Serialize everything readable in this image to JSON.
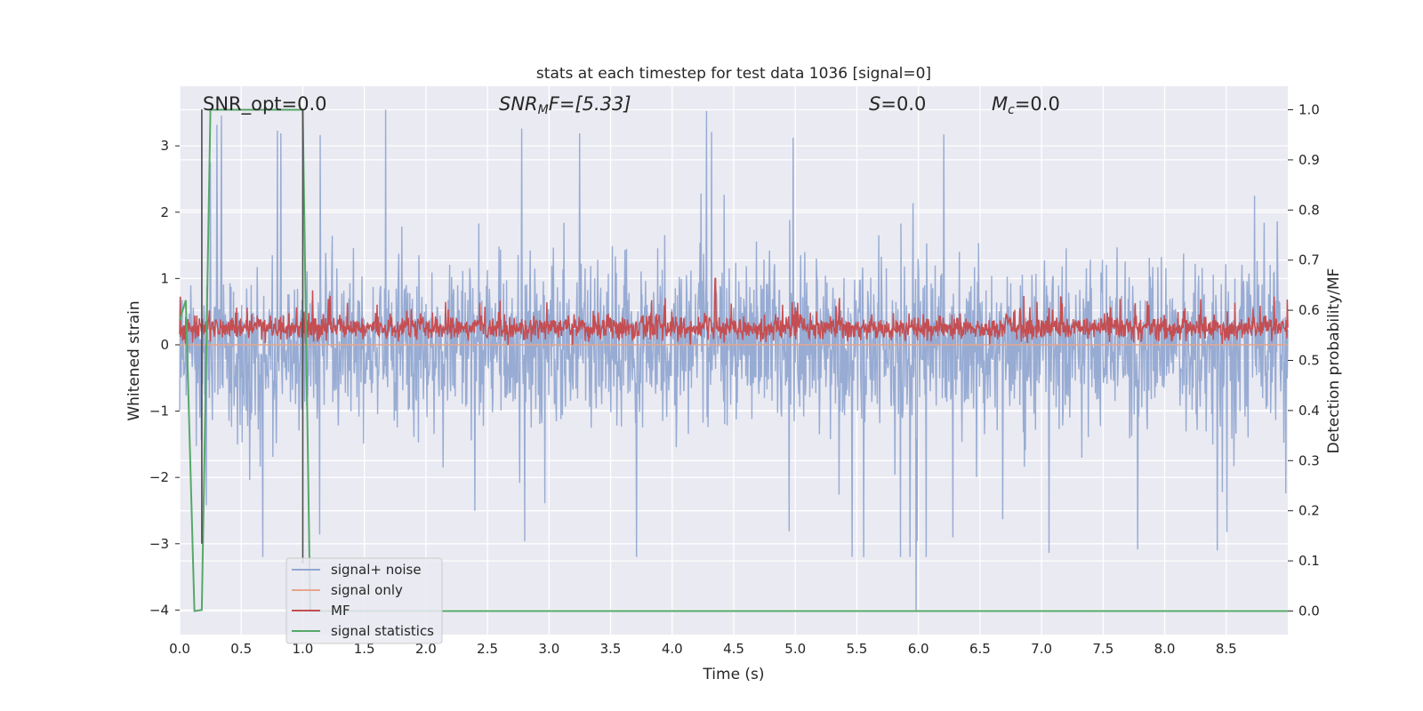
{
  "chart_data": {
    "type": "line",
    "title": "stats at each timestep for test data 1036 [signal=0]",
    "xlabel": "Time (s)",
    "ylabel_left": "Whitened strain",
    "ylabel_right": "Detection probability/MF",
    "xlim": [
      0.0,
      9.0
    ],
    "ylim_left": [
      -4.37,
      3.9
    ],
    "ylim_right": [
      -0.047,
      1.047
    ],
    "x_ticks": [
      "0.0",
      "0.5",
      "1.0",
      "1.5",
      "2.0",
      "2.5",
      "3.0",
      "3.5",
      "4.0",
      "4.5",
      "5.0",
      "5.5",
      "6.0",
      "6.5",
      "7.0",
      "7.5",
      "8.0",
      "8.5"
    ],
    "y_ticks_left": [
      "3",
      "2",
      "1",
      "0",
      "−1",
      "−2",
      "−3",
      "−4"
    ],
    "y_ticks_right": [
      "1.0",
      "0.9",
      "0.8",
      "0.7",
      "0.6",
      "0.5",
      "0.4",
      "0.3",
      "0.2",
      "0.1",
      "0.0"
    ],
    "grid": true,
    "legend_position": "lower-left",
    "annotations": {
      "snr_opt": "SNR_opt=0.0",
      "snr_mf_sym": "SNR",
      "snr_mf_sub": "M",
      "snr_mf_rest": "F=[5.33]",
      "s_sym": "S",
      "s_rest": "=0.0",
      "mc_sym": "M",
      "mc_sub": "c",
      "mc_rest": "=0.0"
    },
    "markers": [
      {
        "x": 0.18,
        "y_top": 3.55,
        "y_bottom": -3.0
      },
      {
        "x": 1.0,
        "y_top": 3.55,
        "y_bottom": -3.3
      }
    ],
    "series": [
      {
        "name": "signal+ noise",
        "color": "#92a8d1",
        "kind": "noise",
        "amplitude_typical": 1.0,
        "amplitude_peak": 3.55,
        "min_value": -4.0
      },
      {
        "name": "signal only",
        "color": "#e8a58a",
        "kind": "flat",
        "value": 0.0
      },
      {
        "name": "MF",
        "color": "#c44e52",
        "kind": "noise",
        "center": 0.25,
        "amplitude_typical": 0.15,
        "peak": 1.0
      },
      {
        "name": "signal statistics",
        "color": "#55a868",
        "kind": "step",
        "axis": "right",
        "points": [
          [
            0.0,
            0.58
          ],
          [
            0.05,
            0.62
          ],
          [
            0.12,
            0.0
          ],
          [
            0.18,
            0.002
          ],
          [
            0.25,
            1.0
          ],
          [
            1.0,
            1.0
          ],
          [
            1.06,
            0.0
          ],
          [
            9.0,
            0.0
          ]
        ]
      }
    ]
  }
}
